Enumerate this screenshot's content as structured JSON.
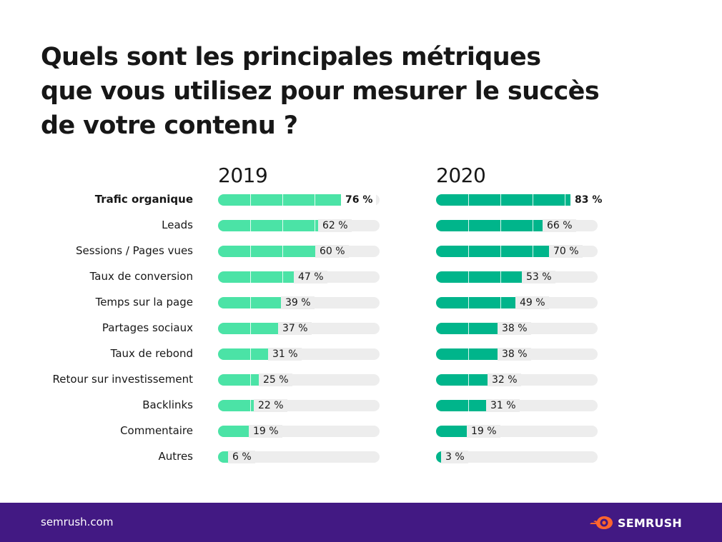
{
  "title_lines": [
    "Quels sont les principales métriques",
    "que vous utilisez pour mesurer le succès",
    "de votre contenu ?"
  ],
  "footer": {
    "site": "semrush.com",
    "brand": "SEMRUSH"
  },
  "colors": {
    "y2019": "#4be3a6",
    "y2020": "#00b58b",
    "track": "#ededed",
    "footer": "#421983",
    "logo_accent": "#ff642d"
  },
  "icons": {
    "logo": "semrush-fireball-icon"
  },
  "chart_data": {
    "type": "bar",
    "orientation": "horizontal",
    "title": "Quels sont les principales métriques que vous utilisez pour mesurer le succès de votre contenu ?",
    "unit": "%",
    "xlim": [
      0,
      100
    ],
    "categories": [
      "Trafic organique",
      "Leads",
      "Sessions / Pages vues",
      "Taux de conversion",
      "Temps sur la page",
      "Partages sociaux",
      "Taux de rebond",
      "Retour sur investissement",
      "Backlinks",
      "Commentaire",
      "Autres"
    ],
    "series": [
      {
        "name": "2019",
        "values": [
          76,
          62,
          60,
          47,
          39,
          37,
          31,
          25,
          22,
          19,
          6
        ],
        "labels": [
          "76 %",
          "62 %",
          "60 %",
          "47 %",
          "39 %",
          "37 %",
          "31 %",
          "25 %",
          "22 %",
          "19 %",
          "6 %"
        ]
      },
      {
        "name": "2020",
        "values": [
          83,
          66,
          70,
          53,
          49,
          38,
          38,
          32,
          31,
          19,
          3
        ],
        "labels": [
          "83 %",
          "66 %",
          "70 %",
          "53 %",
          "49 %",
          "38 %",
          "38 %",
          "32 %",
          "31 %",
          "19 %",
          "3 %"
        ]
      }
    ]
  }
}
